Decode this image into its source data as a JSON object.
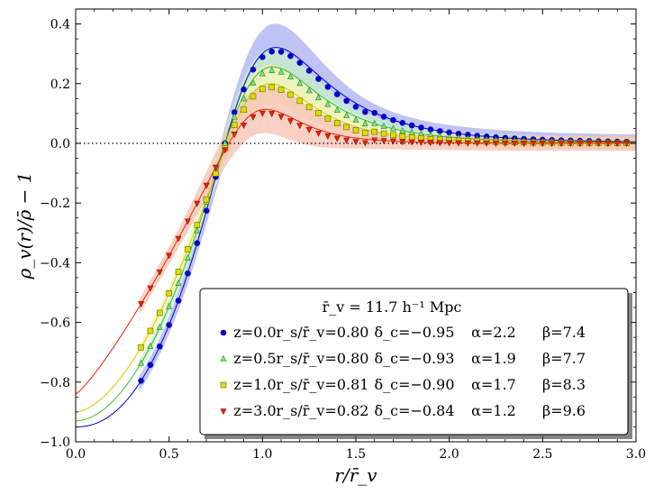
{
  "chart_data": {
    "type": "line",
    "title": "",
    "xlabel": "r/r̄_v",
    "ylabel": "ρ_v(r)/ρ̄ − 1",
    "xlim": [
      0.0,
      3.0
    ],
    "ylim": [
      -1.0,
      0.45
    ],
    "x_ticks": [
      0.0,
      0.5,
      1.0,
      1.5,
      2.0,
      2.5,
      3.0
    ],
    "x_tick_labels": [
      "0.0",
      "0.5",
      "1.0",
      "1.5",
      "2.0",
      "2.5",
      "3.0"
    ],
    "y_ticks": [
      -1.0,
      -0.8,
      -0.6,
      -0.4,
      -0.2,
      0.0,
      0.2,
      0.4
    ],
    "y_tick_labels": [
      "−1.0",
      "−0.8",
      "−0.6",
      "−0.4",
      "−0.2",
      "0.0",
      "0.2",
      "0.4"
    ],
    "reference_line": {
      "y": 0.0,
      "style": "dotted"
    },
    "legend": {
      "title": "r̄_v = 11.7 h⁻¹ Mpc",
      "placement": "bottom-right"
    },
    "series": [
      {
        "name": "z=0.0",
        "label": "z=0.0   r_s/r̄_v=0.80   δ_c=−0.95   α=2.2   β=7.4",
        "z": "z=0.0",
        "rs": "r_s/r̄_v=0.80",
        "dc": "δ_c=−0.95",
        "alpha": "α=2.2",
        "beta": "β=7.4",
        "color": "#0000cc",
        "fill": "#aab0f0",
        "marker": "circle",
        "rs_v": 0.8,
        "dc_v": -0.95,
        "alpha_v": 2.2,
        "beta_v": 7.4,
        "band": 0.025
      },
      {
        "name": "z=0.5",
        "label": "z=0.5   r_s/r̄_v=0.80   δ_c=−0.93   α=1.9   β=7.7",
        "z": "z=0.5",
        "rs": "r_s/r̄_v=0.80",
        "dc": "δ_c=−0.93",
        "alpha": "α=1.9",
        "beta": "β=7.7",
        "color": "#33bb33",
        "fill": "#c8efc8",
        "marker": "triangle-up",
        "rs_v": 0.8,
        "dc_v": -0.93,
        "alpha_v": 1.9,
        "beta_v": 7.7,
        "band": 0.02
      },
      {
        "name": "z=1.0",
        "label": "z=1.0   r_s/r̄_v=0.81   δ_c=−0.90   α=1.7   β=8.3",
        "z": "z=1.0",
        "rs": "r_s/r̄_v=0.81",
        "dc": "δ_c=−0.90",
        "alpha": "α=1.7",
        "beta": "β=8.3",
        "color": "#cccc00",
        "fill": "#f4f4b0",
        "marker": "square",
        "rs_v": 0.81,
        "dc_v": -0.9,
        "alpha_v": 1.7,
        "beta_v": 8.3,
        "band": 0.02
      },
      {
        "name": "z=3.0",
        "label": "z=3.0   r_s/r̄_v=0.82   δ_c=−0.84   α=1.2   β=9.6",
        "z": "z=3.0",
        "rs": "r_s/r̄_v=0.82",
        "dc": "δ_c=−0.84",
        "alpha": "α=1.2",
        "beta": "β=9.6",
        "color": "#ee2200",
        "fill": "#f6c0b0",
        "marker": "triangle-down",
        "rs_v": 0.82,
        "dc_v": -0.84,
        "alpha_v": 1.2,
        "beta_v": 9.6,
        "band": 0.025
      }
    ],
    "points_x": [
      0.35,
      0.4,
      0.45,
      0.5,
      0.55,
      0.6,
      0.65,
      0.7,
      0.75,
      0.8,
      0.85,
      0.9,
      0.95,
      1.0,
      1.05,
      1.1,
      1.15,
      1.2,
      1.25,
      1.3,
      1.35,
      1.4,
      1.45,
      1.5,
      1.55,
      1.6,
      1.65,
      1.7,
      1.75,
      1.8,
      1.85,
      1.9,
      1.95,
      2.0,
      2.05,
      2.1,
      2.15,
      2.2,
      2.25,
      2.3,
      2.35,
      2.4,
      2.45,
      2.5,
      2.55,
      2.6,
      2.65,
      2.7,
      2.75,
      2.8,
      2.85,
      2.9,
      2.95
    ]
  }
}
